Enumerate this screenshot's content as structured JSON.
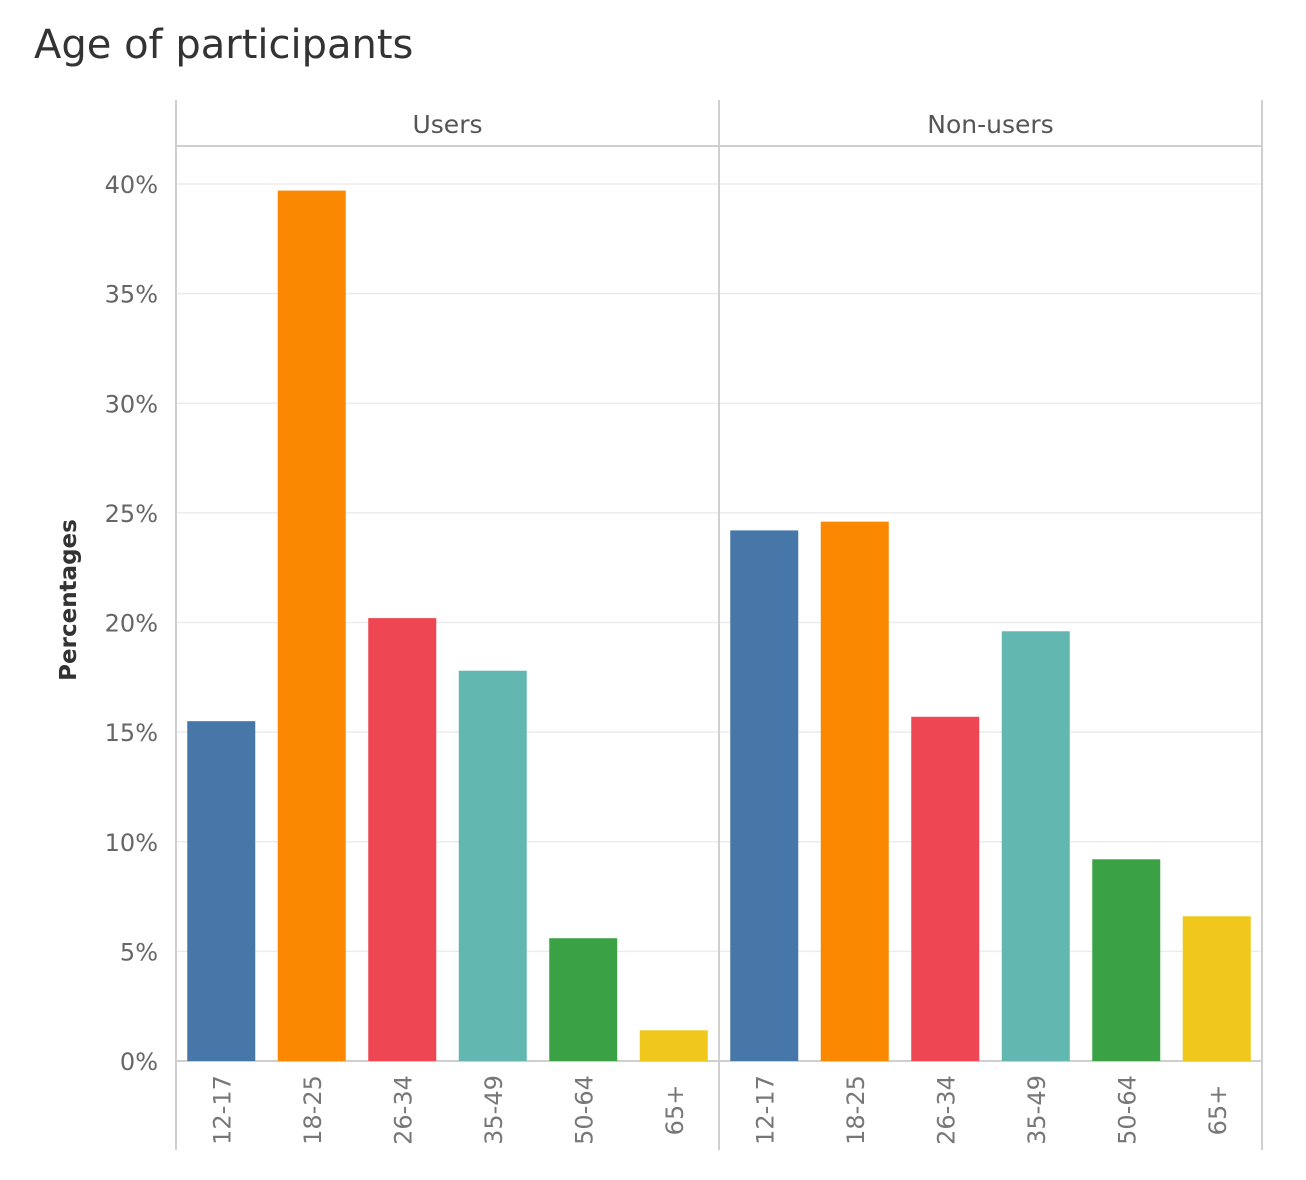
{
  "chart_data": {
    "type": "bar",
    "title": "Age of participants",
    "ylabel": "Percentages",
    "xlabel": "",
    "ylim": [
      0,
      40
    ],
    "yticks": [
      "0%",
      "5%",
      "10%",
      "15%",
      "20%",
      "25%",
      "30%",
      "35%",
      "40%"
    ],
    "categories": [
      "12-17",
      "18-25",
      "26-34",
      "35-49",
      "50-64",
      "65+"
    ],
    "colors": [
      "#4677a8",
      "#fa8800",
      "#ef4653",
      "#62b7b0",
      "#3aa244",
      "#f0c81b"
    ],
    "grid": true,
    "panels": [
      {
        "label": "Users",
        "values": [
          15.5,
          39.7,
          20.2,
          17.8,
          5.6,
          1.4
        ]
      },
      {
        "label": "Non-users",
        "values": [
          24.2,
          24.6,
          15.7,
          19.6,
          9.2,
          6.6
        ]
      }
    ]
  }
}
